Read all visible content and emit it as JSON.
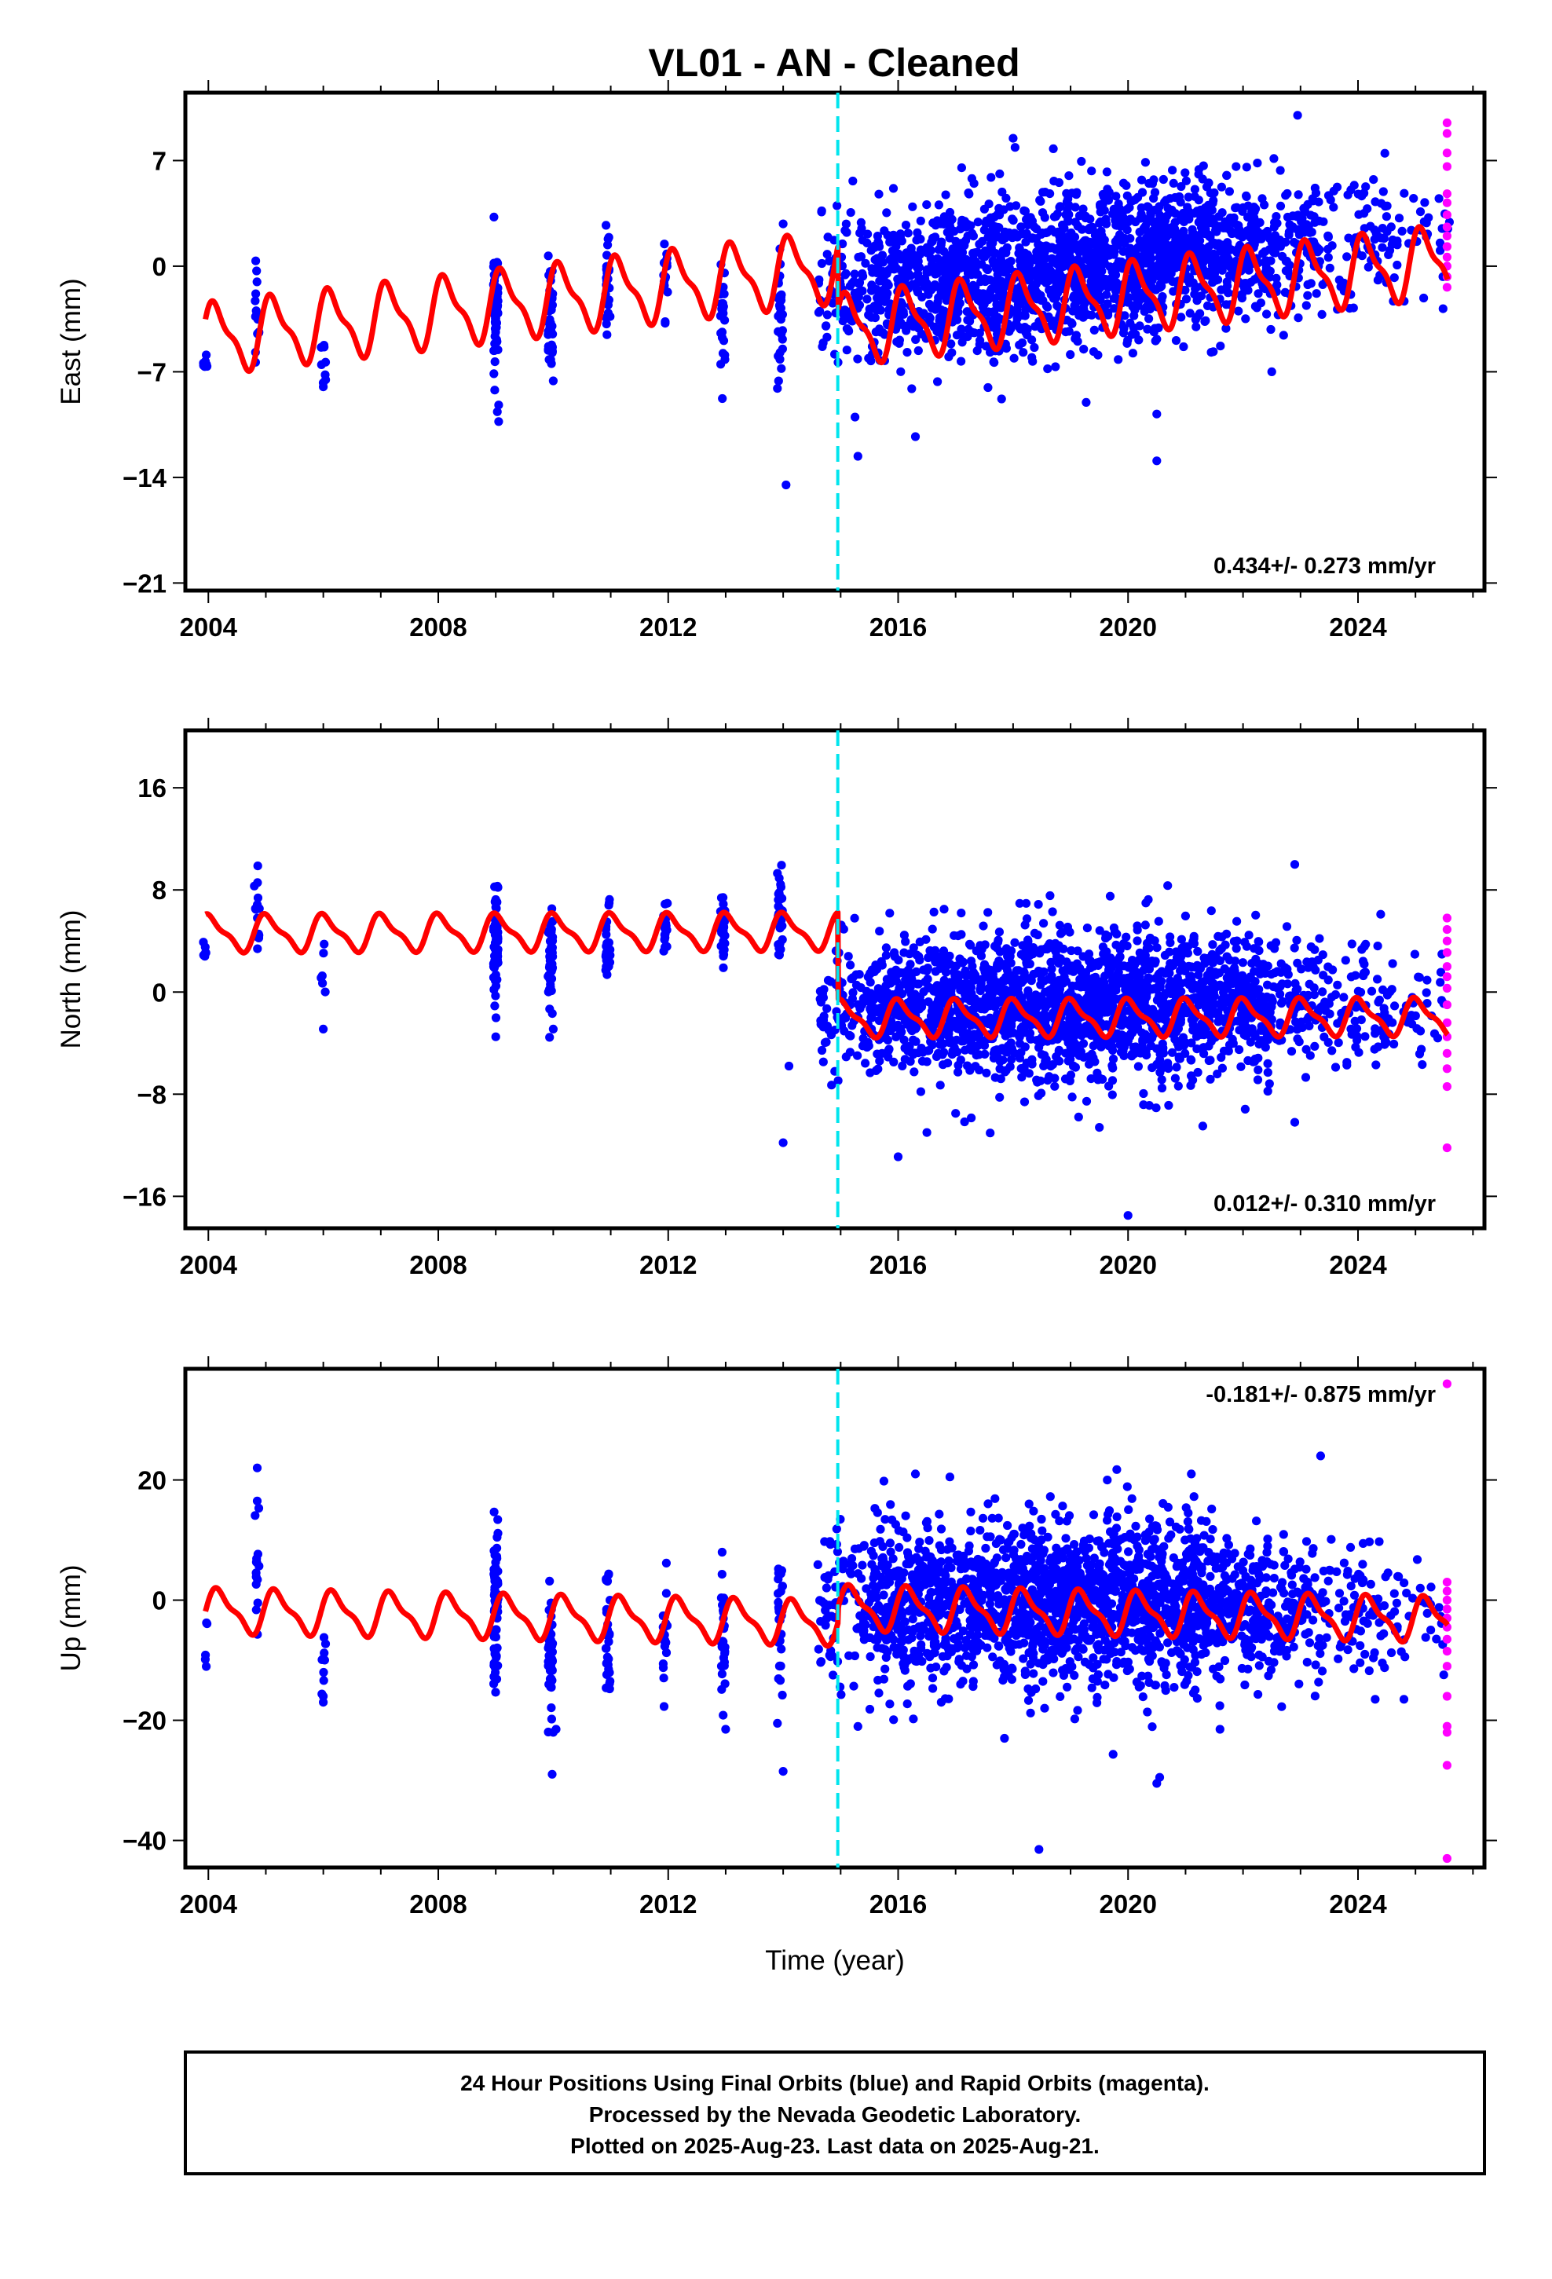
{
  "title": "VL01  - AN - Cleaned",
  "chart_data": [
    {
      "type": "scatter",
      "panel": "east",
      "ylabel": "East (mm)",
      "xlabel": "",
      "xlim": [
        2003.6,
        2026.2
      ],
      "ylim": [
        -21.5,
        11.5
      ],
      "xticks": [
        2004,
        2008,
        2012,
        2016,
        2020,
        2024
      ],
      "yticks": [
        7,
        0,
        -7,
        -14,
        -21
      ],
      "rate_label": "0.434+/- 0.273 mm/yr",
      "rate_position": "bottom-right",
      "offset_year": 2014.95,
      "model": {
        "trend": 0.434,
        "amplitude": 2.1,
        "phase": 0.7,
        "base": -4.8,
        "offset": -4.2
      },
      "series": [
        {
          "name": "Final Orbits (blue)",
          "color": "#0000ff",
          "clusters": [
            {
              "x": 2003.95,
              "n": 8,
              "mean": -6.5,
              "sd": 0.8
            },
            {
              "x": 2004.85,
              "n": 14,
              "mean": -2.6,
              "sd": 1.5
            },
            {
              "x": 2006.0,
              "n": 8,
              "mean": -5.0,
              "sd": 1.6
            },
            {
              "x": 2009.0,
              "n": 70,
              "mean": -3.0,
              "sd": 1.9
            },
            {
              "x": 2009.95,
              "n": 45,
              "mean": -3.2,
              "sd": 1.6
            },
            {
              "x": 2010.95,
              "n": 28,
              "mean": -1.2,
              "sd": 1.8
            },
            {
              "x": 2011.95,
              "n": 18,
              "mean": -0.8,
              "sd": 1.4
            },
            {
              "x": 2012.95,
              "n": 28,
              "mean": -2.7,
              "sd": 1.8
            },
            {
              "x": 2013.95,
              "n": 28,
              "mean": -3.5,
              "sd": 2.0
            },
            {
              "x": 2015.5,
              "w": 0.9,
              "n": 170,
              "mean": -1.5,
              "sd": 2.4
            },
            {
              "x": 2016.5,
              "w": 1.0,
              "n": 240,
              "mean": -1.0,
              "sd": 2.4
            },
            {
              "x": 2017.5,
              "w": 1.0,
              "n": 270,
              "mean": -0.8,
              "sd": 2.5
            },
            {
              "x": 2018.5,
              "w": 1.0,
              "n": 300,
              "mean": -0.4,
              "sd": 2.8
            },
            {
              "x": 2019.5,
              "w": 1.0,
              "n": 300,
              "mean": 0.2,
              "sd": 2.5
            },
            {
              "x": 2020.5,
              "w": 1.0,
              "n": 300,
              "mean": 0.8,
              "sd": 2.6
            },
            {
              "x": 2021.5,
              "w": 1.0,
              "n": 260,
              "mean": 1.2,
              "sd": 2.2
            },
            {
              "x": 2022.5,
              "w": 1.0,
              "n": 130,
              "mean": 1.4,
              "sd": 2.2
            },
            {
              "x": 2023.5,
              "w": 1.0,
              "n": 90,
              "mean": 1.8,
              "sd": 2.2
            },
            {
              "x": 2024.6,
              "w": 1.0,
              "n": 60,
              "mean": 1.9,
              "sd": 2.2
            }
          ],
          "outliers": [
            [
              2014.05,
              -14.5
            ],
            [
              2009.05,
              -10.3
            ],
            [
              2009.05,
              -9.2
            ],
            [
              2015.3,
              -12.6
            ],
            [
              2015.25,
              -10.0
            ],
            [
              2016.3,
              -11.3
            ],
            [
              2020.5,
              -9.8
            ],
            [
              2020.5,
              -12.9
            ],
            [
              2022.95,
              10.0
            ],
            [
              2022.5,
              -7.0
            ],
            [
              2017.8,
              -8.8
            ],
            [
              2018.6,
              -6.8
            ],
            [
              2006.0,
              -8.0
            ],
            [
              2010.0,
              -7.6
            ],
            [
              2013.9,
              -8.1
            ],
            [
              2014.0,
              2.8
            ]
          ]
        },
        {
          "name": "Rapid Orbits (magenta)",
          "color": "#ff00ff",
          "x": 2025.55,
          "y": [
            9.5,
            8.8,
            7.5,
            6.6,
            4.8,
            4.2,
            3.4,
            2.6,
            2.0,
            1.3,
            0.6,
            0.0,
            -0.7,
            -1.4
          ]
        }
      ]
    },
    {
      "type": "scatter",
      "panel": "north",
      "ylabel": "North (mm)",
      "xlabel": "",
      "xlim": [
        2003.6,
        2026.2
      ],
      "ylim": [
        -18.5,
        20.5
      ],
      "xticks": [
        2004,
        2008,
        2012,
        2016,
        2020,
        2024
      ],
      "yticks": [
        16,
        8,
        0,
        -8,
        -16
      ],
      "rate_label": "0.012+/- 0.310 mm/yr",
      "rate_position": "bottom-right",
      "offset_year": 2014.95,
      "model": {
        "trend": 0.012,
        "amplitude": 1.3,
        "phase": 1.3,
        "base": 4.6,
        "offset": -6.8
      },
      "series": [
        {
          "name": "Final Orbits (blue)",
          "color": "#0000ff",
          "clusters": [
            {
              "x": 2003.95,
              "n": 6,
              "mean": 3.0,
              "sd": 0.7
            },
            {
              "x": 2004.85,
              "n": 14,
              "mean": 5.8,
              "sd": 1.6
            },
            {
              "x": 2006.0,
              "n": 6,
              "mean": 2.0,
              "sd": 2.0
            },
            {
              "x": 2009.0,
              "n": 70,
              "mean": 4.0,
              "sd": 2.0
            },
            {
              "x": 2009.95,
              "n": 45,
              "mean": 2.5,
              "sd": 2.2
            },
            {
              "x": 2010.95,
              "n": 28,
              "mean": 3.5,
              "sd": 2.2
            },
            {
              "x": 2011.95,
              "n": 18,
              "mean": 4.8,
              "sd": 1.4
            },
            {
              "x": 2012.95,
              "n": 28,
              "mean": 5.0,
              "sd": 1.4
            },
            {
              "x": 2013.95,
              "n": 28,
              "mean": 5.5,
              "sd": 2.0
            },
            {
              "x": 2015.5,
              "w": 0.9,
              "n": 170,
              "mean": -1.2,
              "sd": 2.6
            },
            {
              "x": 2016.5,
              "w": 1.0,
              "n": 240,
              "mean": -1.0,
              "sd": 2.8
            },
            {
              "x": 2017.5,
              "w": 1.0,
              "n": 270,
              "mean": -1.0,
              "sd": 2.9
            },
            {
              "x": 2018.5,
              "w": 1.0,
              "n": 300,
              "mean": -1.2,
              "sd": 3.0
            },
            {
              "x": 2019.5,
              "w": 1.0,
              "n": 300,
              "mean": -1.0,
              "sd": 3.0
            },
            {
              "x": 2020.5,
              "w": 1.0,
              "n": 300,
              "mean": -0.8,
              "sd": 3.0
            },
            {
              "x": 2021.5,
              "w": 1.0,
              "n": 260,
              "mean": -0.8,
              "sd": 2.7
            },
            {
              "x": 2022.5,
              "w": 1.0,
              "n": 130,
              "mean": -0.8,
              "sd": 2.4
            },
            {
              "x": 2023.5,
              "w": 1.0,
              "n": 90,
              "mean": -0.8,
              "sd": 2.4
            },
            {
              "x": 2024.6,
              "w": 1.0,
              "n": 60,
              "mean": -1.0,
              "sd": 2.4
            }
          ],
          "outliers": [
            [
              2014.0,
              -11.8
            ],
            [
              2014.1,
              -5.8
            ],
            [
              2006.0,
              -2.9
            ],
            [
              2009.0,
              -3.5
            ],
            [
              2010.0,
              -2.9
            ],
            [
              2016.0,
              -12.9
            ],
            [
              2016.5,
              -11.0
            ],
            [
              2020.0,
              -17.5
            ],
            [
              2019.5,
              -10.6
            ],
            [
              2021.3,
              -10.5
            ],
            [
              2022.9,
              -10.2
            ],
            [
              2022.9,
              10.0
            ],
            [
              2017.0,
              -9.5
            ],
            [
              2018.2,
              -8.6
            ],
            [
              2013.9,
              9.3
            ],
            [
              2004.8,
              8.3
            ]
          ]
        },
        {
          "name": "Rapid Orbits (magenta)",
          "color": "#ff00ff",
          "x": 2025.55,
          "y": [
            5.8,
            4.9,
            4.0,
            3.1,
            2.0,
            1.2,
            0.3,
            -1.0,
            -2.4,
            -3.5,
            -4.8,
            -6.0,
            -7.4,
            -12.2
          ]
        }
      ]
    },
    {
      "type": "scatter",
      "panel": "up",
      "ylabel": "Up (mm)",
      "xlabel": "Time (year)",
      "xlim": [
        2003.6,
        2026.2
      ],
      "ylim": [
        -44.5,
        38.5
      ],
      "xticks": [
        2004,
        2008,
        2012,
        2016,
        2020,
        2024
      ],
      "yticks": [
        20,
        0,
        -20,
        -40
      ],
      "rate_label": "-0.181+/- 0.875 mm/yr",
      "rate_position": "top-right",
      "offset_year": 2014.95,
      "model": {
        "trend": -0.181,
        "amplitude": 3.3,
        "phase": 0.3,
        "base": -1.8,
        "offset": 2.5
      },
      "series": [
        {
          "name": "Final Orbits (blue)",
          "color": "#0000ff",
          "clusters": [
            {
              "x": 2003.95,
              "n": 5,
              "mean": -8.0,
              "sd": 3.0
            },
            {
              "x": 2004.85,
              "n": 14,
              "mean": 6.0,
              "sd": 7.0
            },
            {
              "x": 2006.0,
              "n": 8,
              "mean": -10.0,
              "sd": 6.0
            },
            {
              "x": 2009.0,
              "n": 70,
              "mean": -1.0,
              "sd": 6.5
            },
            {
              "x": 2009.95,
              "n": 45,
              "mean": -9.0,
              "sd": 7.0
            },
            {
              "x": 2010.95,
              "n": 28,
              "mean": -6.0,
              "sd": 6.0
            },
            {
              "x": 2011.95,
              "n": 18,
              "mean": -7.0,
              "sd": 5.0
            },
            {
              "x": 2012.95,
              "n": 28,
              "mean": -6.0,
              "sd": 6.0
            },
            {
              "x": 2013.95,
              "n": 28,
              "mean": -4.0,
              "sd": 6.5
            },
            {
              "x": 2015.5,
              "w": 0.9,
              "n": 170,
              "mean": 0.5,
              "sd": 6.5
            },
            {
              "x": 2016.5,
              "w": 1.0,
              "n": 240,
              "mean": -0.5,
              "sd": 6.8
            },
            {
              "x": 2017.5,
              "w": 1.0,
              "n": 270,
              "mean": -1.0,
              "sd": 7.0
            },
            {
              "x": 2018.5,
              "w": 1.0,
              "n": 300,
              "mean": 0.0,
              "sd": 7.0
            },
            {
              "x": 2019.5,
              "w": 1.0,
              "n": 300,
              "mean": -0.5,
              "sd": 7.0
            },
            {
              "x": 2020.5,
              "w": 1.0,
              "n": 300,
              "mean": 0.0,
              "sd": 7.0
            },
            {
              "x": 2021.5,
              "w": 1.0,
              "n": 260,
              "mean": -1.0,
              "sd": 6.0
            },
            {
              "x": 2022.5,
              "w": 1.0,
              "n": 130,
              "mean": -1.0,
              "sd": 5.0
            },
            {
              "x": 2023.5,
              "w": 1.0,
              "n": 90,
              "mean": -2.0,
              "sd": 5.5
            },
            {
              "x": 2024.6,
              "w": 1.0,
              "n": 60,
              "mean": -2.0,
              "sd": 5.5
            }
          ],
          "outliers": [
            [
              2018.45,
              -41.5
            ],
            [
              2020.5,
              -30.5
            ],
            [
              2020.55,
              -29.5
            ],
            [
              2014.0,
              -28.5
            ],
            [
              2010.0,
              -22.0
            ],
            [
              2010.05,
              -21.5
            ],
            [
              2013.9,
              -20.5
            ],
            [
              2013.0,
              -21.5
            ],
            [
              2004.85,
              22.0
            ],
            [
              2004.85,
              16.5
            ],
            [
              2023.35,
              24.0
            ],
            [
              2016.3,
              21.0
            ],
            [
              2016.9,
              20.5
            ],
            [
              2021.1,
              21.0
            ],
            [
              2024.8,
              -16.5
            ],
            [
              2024.3,
              -16.5
            ],
            [
              2021.6,
              -21.5
            ],
            [
              2017.85,
              -23.0
            ],
            [
              2006.0,
              -16.0
            ],
            [
              2006.0,
              -17.0
            ]
          ]
        },
        {
          "name": "Rapid Orbits (magenta)",
          "color": "#ff00ff",
          "x": 2025.55,
          "y": [
            36.0,
            3.0,
            1.5,
            0.0,
            -1.5,
            -3.0,
            -4.5,
            -6.5,
            -8.5,
            -11.0,
            -16.0,
            -21.0,
            -22.0,
            -27.5,
            -43.0
          ]
        }
      ]
    }
  ],
  "caption": {
    "line1": "24 Hour Positions Using Final Orbits (blue) and Rapid Orbits (magenta).",
    "line2": "Processed by the Nevada Geodetic Laboratory.",
    "line3": "Plotted on 2025-Aug-23. Last data on 2025-Aug-21."
  }
}
